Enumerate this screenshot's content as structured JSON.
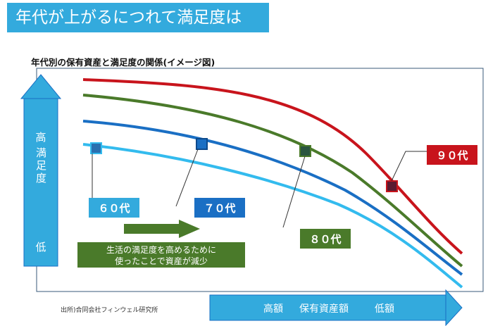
{
  "title": "年代が上がるにつれて満足度は",
  "subtitle": "年代別の保有資産と満足度の関係(イメージ図)",
  "source": "出所)合同会社フィンウェル研究所",
  "y_axis": {
    "high": "高",
    "label": "満足度",
    "low": "低"
  },
  "x_axis": {
    "high": "高額",
    "label": "保有資産額",
    "low": "低額"
  },
  "note": {
    "line1": "生活の満足度を高めるために",
    "line2": "使ったことで資産が減少"
  },
  "series": [
    {
      "label": "６０代",
      "color": "#33bbee"
    },
    {
      "label": "７０代",
      "color": "#1a6fc4"
    },
    {
      "label": "８０代",
      "color": "#4a7a2a"
    },
    {
      "label": "９０代",
      "color": "#c8141c"
    }
  ],
  "colors": {
    "accent": "#33aadd",
    "note_bg": "#4a7a2a",
    "frame": "#3a5a7a",
    "marker_fill": "#2a5580"
  }
}
